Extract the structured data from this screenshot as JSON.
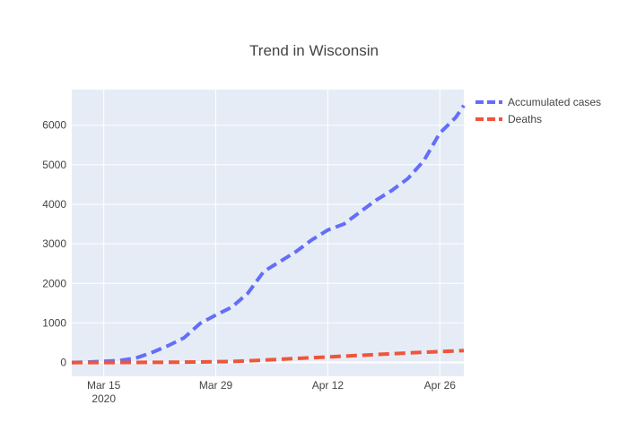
{
  "chart_data": {
    "type": "line",
    "title": "Trend in Wisconsin",
    "xlabel": "",
    "ylabel": "",
    "x_type": "date",
    "x_range": [
      "2020-03-11",
      "2020-04-29"
    ],
    "ylim": [
      -350,
      6900
    ],
    "x_ticks": [
      {
        "date": "2020-03-15",
        "label": "Mar 15",
        "sublabel": "2020"
      },
      {
        "date": "2020-03-29",
        "label": "Mar 29",
        "sublabel": ""
      },
      {
        "date": "2020-04-12",
        "label": "Apr 12",
        "sublabel": ""
      },
      {
        "date": "2020-04-26",
        "label": "Apr 26",
        "sublabel": ""
      }
    ],
    "y_ticks": [
      0,
      1000,
      2000,
      3000,
      4000,
      5000,
      6000
    ],
    "grid": true,
    "legend_position": "top-right",
    "line_style": "dashed",
    "series": [
      {
        "name": "Accumulated cases",
        "color": "#636efa",
        "points": [
          {
            "x": "2020-03-11",
            "y": 0
          },
          {
            "x": "2020-03-13",
            "y": 10
          },
          {
            "x": "2020-03-15",
            "y": 30
          },
          {
            "x": "2020-03-17",
            "y": 50
          },
          {
            "x": "2020-03-19",
            "y": 110
          },
          {
            "x": "2020-03-21",
            "y": 250
          },
          {
            "x": "2020-03-23",
            "y": 420
          },
          {
            "x": "2020-03-25",
            "y": 620
          },
          {
            "x": "2020-03-27",
            "y": 980
          },
          {
            "x": "2020-03-29",
            "y": 1200
          },
          {
            "x": "2020-03-31",
            "y": 1400
          },
          {
            "x": "2020-04-02",
            "y": 1750
          },
          {
            "x": "2020-04-04",
            "y": 2300
          },
          {
            "x": "2020-04-06",
            "y": 2550
          },
          {
            "x": "2020-04-08",
            "y": 2800
          },
          {
            "x": "2020-04-10",
            "y": 3100
          },
          {
            "x": "2020-04-12",
            "y": 3350
          },
          {
            "x": "2020-04-14",
            "y": 3500
          },
          {
            "x": "2020-04-16",
            "y": 3800
          },
          {
            "x": "2020-04-18",
            "y": 4100
          },
          {
            "x": "2020-04-20",
            "y": 4350
          },
          {
            "x": "2020-04-22",
            "y": 4650
          },
          {
            "x": "2020-04-24",
            "y": 5100
          },
          {
            "x": "2020-04-26",
            "y": 5800
          },
          {
            "x": "2020-04-28",
            "y": 6200
          },
          {
            "x": "2020-04-29",
            "y": 6500
          }
        ]
      },
      {
        "name": "Deaths",
        "color": "#ef553b",
        "points": [
          {
            "x": "2020-03-11",
            "y": 0
          },
          {
            "x": "2020-03-15",
            "y": 0
          },
          {
            "x": "2020-03-19",
            "y": 2
          },
          {
            "x": "2020-03-23",
            "y": 5
          },
          {
            "x": "2020-03-27",
            "y": 13
          },
          {
            "x": "2020-03-31",
            "y": 25
          },
          {
            "x": "2020-04-04",
            "y": 60
          },
          {
            "x": "2020-04-08",
            "y": 100
          },
          {
            "x": "2020-04-12",
            "y": 140
          },
          {
            "x": "2020-04-16",
            "y": 180
          },
          {
            "x": "2020-04-20",
            "y": 220
          },
          {
            "x": "2020-04-24",
            "y": 260
          },
          {
            "x": "2020-04-29",
            "y": 300
          }
        ]
      }
    ]
  }
}
